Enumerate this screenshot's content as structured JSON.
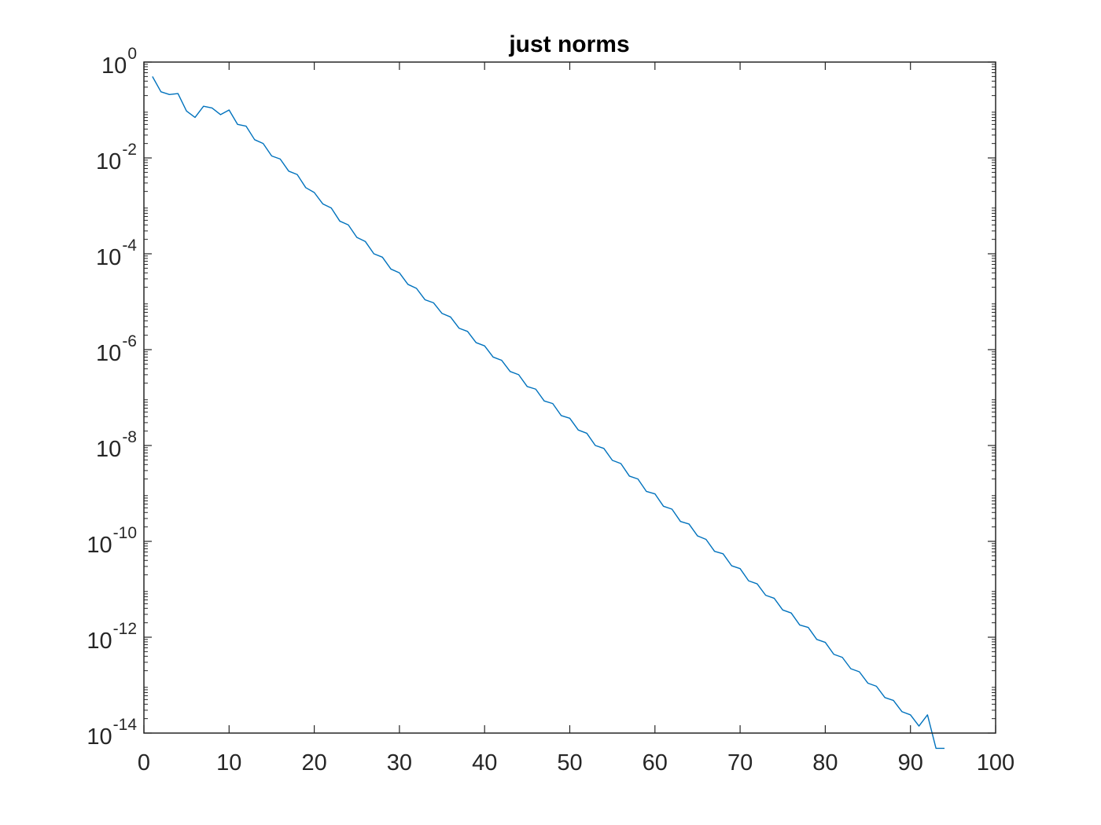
{
  "chart_data": {
    "type": "line",
    "title": "just norms",
    "xlabel": "",
    "ylabel": "",
    "xlim": [
      0,
      100
    ],
    "ylim": [
      1e-14,
      1
    ],
    "yscale": "log",
    "grid": false,
    "x_ticks": [
      0,
      10,
      20,
      30,
      40,
      50,
      60,
      70,
      80,
      90,
      100
    ],
    "x_tick_labels": [
      "0",
      "10",
      "20",
      "30",
      "40",
      "50",
      "60",
      "70",
      "80",
      "90",
      "100"
    ],
    "y_tick_exponents": [
      0,
      -2,
      -4,
      -6,
      -8,
      -10,
      -12,
      -14
    ],
    "y_tick_labels": [
      {
        "base": "10",
        "exp": "0"
      },
      {
        "base": "10",
        "exp": "-2"
      },
      {
        "base": "10",
        "exp": "-4"
      },
      {
        "base": "10",
        "exp": "-6"
      },
      {
        "base": "10",
        "exp": "-8"
      },
      {
        "base": "10",
        "exp": "-10"
      },
      {
        "base": "10",
        "exp": "-12"
      },
      {
        "base": "10",
        "exp": "-14"
      }
    ],
    "series": [
      {
        "color": "#0072BD",
        "x": [
          1,
          2,
          3,
          4,
          5,
          6,
          7,
          8,
          9,
          10,
          11,
          12,
          13,
          14,
          15,
          16,
          17,
          18,
          19,
          20,
          21,
          22,
          23,
          24,
          25,
          26,
          27,
          28,
          29,
          30,
          31,
          32,
          33,
          34,
          35,
          36,
          37,
          38,
          39,
          40,
          41,
          42,
          43,
          44,
          45,
          46,
          47,
          48,
          49,
          50,
          51,
          52,
          53,
          54,
          55,
          56,
          57,
          58,
          59,
          60,
          61,
          62,
          63,
          64,
          65,
          66,
          67,
          68,
          69,
          70,
          71,
          72,
          73,
          74,
          75,
          76,
          77,
          78,
          79,
          80,
          81,
          82,
          83,
          84,
          85,
          86,
          87,
          88,
          89,
          90,
          91,
          92,
          93,
          94
        ],
        "y": [
          0.5,
          0.24,
          0.21,
          0.22,
          0.095,
          0.07,
          0.12,
          0.11,
          0.08,
          0.1,
          0.05,
          0.046,
          0.024,
          0.02,
          0.011,
          0.0095,
          0.0053,
          0.0045,
          0.0024,
          0.0019,
          0.0011,
          0.0009,
          0.00048,
          0.0004,
          0.00022,
          0.00018,
          0.0001,
          8.5e-05,
          4.8e-05,
          4e-05,
          2.3e-05,
          1.9e-05,
          1.1e-05,
          9.5e-06,
          5.7e-06,
          4.8e-06,
          2.8e-06,
          2.4e-06,
          1.4e-06,
          1.2e-06,
          7e-07,
          6e-07,
          3.5e-07,
          3e-07,
          1.7e-07,
          1.5e-07,
          8.5e-08,
          7.5e-08,
          4.2e-08,
          3.7e-08,
          2.1e-08,
          1.8e-08,
          1e-08,
          8.7e-09,
          4.9e-09,
          4.2e-09,
          2.3e-09,
          2e-09,
          1.1e-09,
          9.8e-10,
          5.4e-10,
          4.7e-10,
          2.6e-10,
          2.3e-10,
          1.3e-10,
          1.1e-10,
          6.2e-11,
          5.5e-11,
          3.1e-11,
          2.7e-11,
          1.5e-11,
          1.3e-11,
          7.5e-12,
          6.5e-12,
          3.7e-12,
          3.2e-12,
          1.8e-12,
          1.6e-12,
          9e-13,
          7.8e-13,
          4.4e-13,
          3.8e-13,
          2.2e-13,
          1.9e-13,
          1.1e-13,
          9.5e-14,
          5.5e-14,
          4.8e-14,
          2.8e-14,
          2.4e-14,
          1.4e-14,
          2.4e-14,
          4.8e-15,
          4.8e-15
        ]
      }
    ]
  }
}
